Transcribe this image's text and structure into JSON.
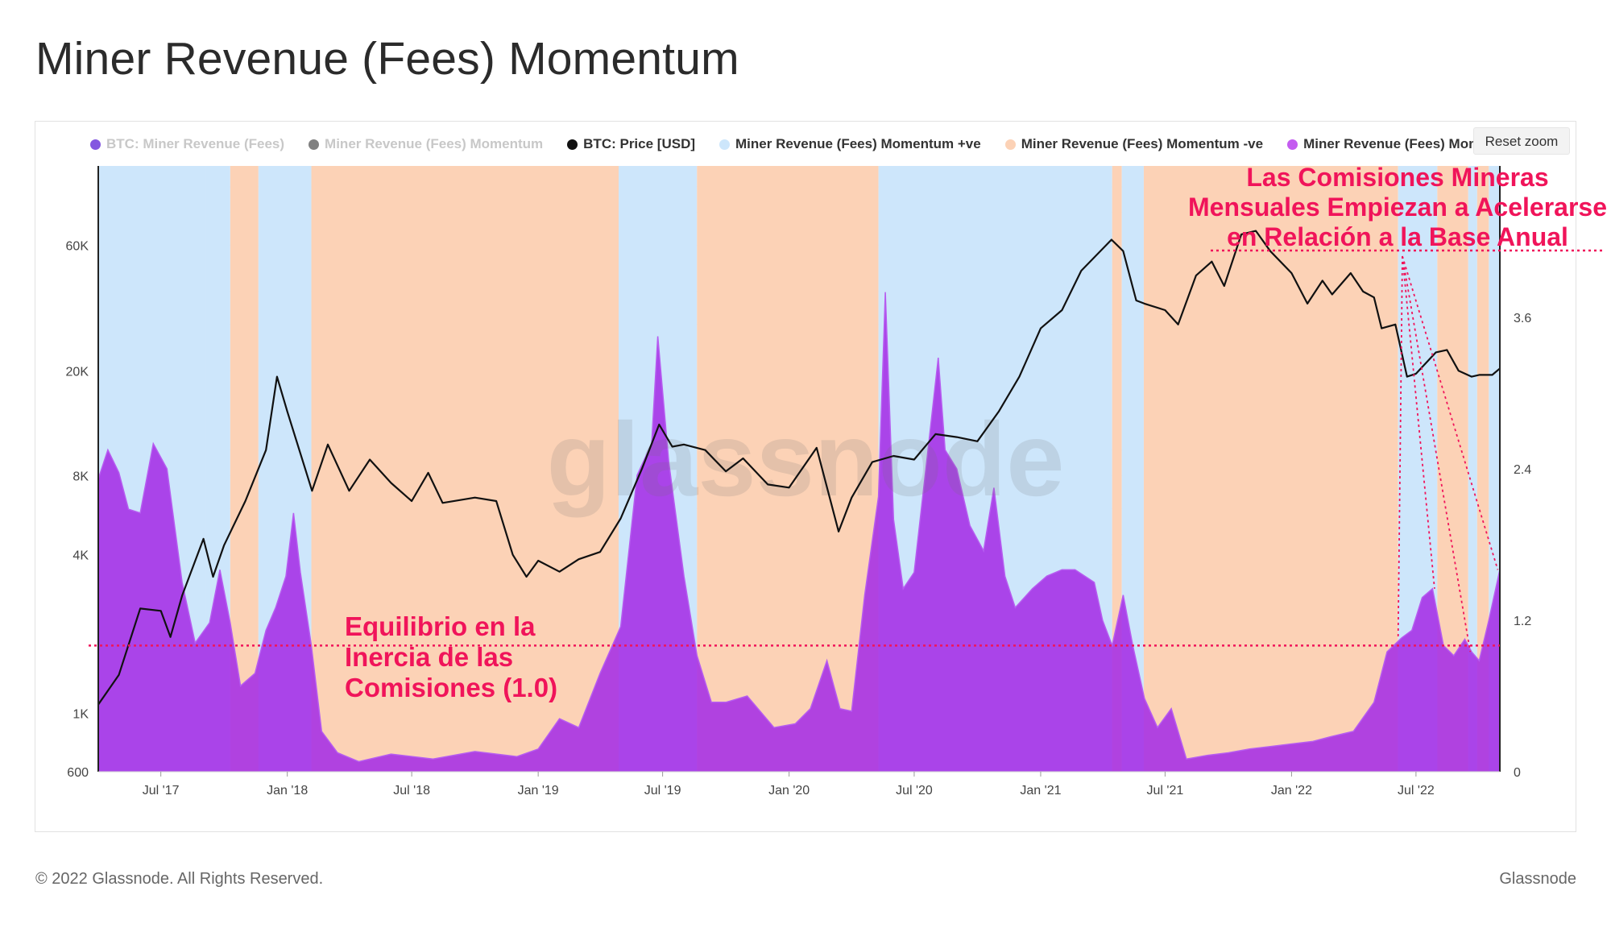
{
  "page": {
    "title": "Miner Revenue (Fees) Momentum",
    "reset_zoom_label": "Reset zoom",
    "copyright": "© 2022 Glassnode. All Rights Reserved.",
    "brand": "Glassnode",
    "watermark": "glassnode"
  },
  "legend": [
    {
      "label": "BTC: Miner Revenue (Fees)",
      "color": "#5b1fd6",
      "visible": false
    },
    {
      "label": "Miner Revenue (Fees) Momentum",
      "color": "#555555",
      "visible": false
    },
    {
      "label": "BTC: Price [USD]",
      "color": "#111111",
      "visible": true
    },
    {
      "label": "Miner Revenue (Fees) Momentum +ve",
      "color": "#cde6fb",
      "visible": true
    },
    {
      "label": "Miner Revenue (Fees) Momentum -ve",
      "color": "#fcd2b6",
      "visible": true
    },
    {
      "label": "Miner Revenue (Fees) Momentum",
      "color": "#c45cf0",
      "visible": true
    }
  ],
  "annotations": {
    "top_right": [
      "Las Comisiones Mineras",
      "Mensuales Empiezan a Acelerarse",
      "en Relación a la Base Anual"
    ],
    "equilibrium": [
      "Equilibrio en la",
      "Inercia de las",
      "Comisiones (1.0)"
    ]
  },
  "colors": {
    "price_line": "#111111",
    "positive_band": "#cde6fb",
    "negative_band": "#fcd2b6",
    "momentum_fill": "#a52ee6",
    "annotation": "#f0145a"
  },
  "chart_data": {
    "type": "area",
    "title": "Miner Revenue (Fees) Momentum",
    "x_axis": {
      "type": "datetime",
      "range": [
        "2017-04-01",
        "2022-10-31"
      ],
      "tick_labels": [
        "Jul '17",
        "Jan '18",
        "Jul '18",
        "Jan '19",
        "Jul '19",
        "Jan '20",
        "Jul '20",
        "Jan '21",
        "Jul '21",
        "Jan '22",
        "Jul '22"
      ],
      "tick_dates": [
        "2017-07-01",
        "2018-01-01",
        "2018-07-01",
        "2019-01-01",
        "2019-07-01",
        "2020-01-01",
        "2020-07-01",
        "2021-01-01",
        "2021-07-01",
        "2022-01-01",
        "2022-07-01"
      ]
    },
    "y_axis_left": {
      "label": "BTC: Price [USD]",
      "scale": "log",
      "range": [
        600,
        120000
      ],
      "tick_labels": [
        "600",
        "1K",
        "4K",
        "8K",
        "20K",
        "60K"
      ],
      "tick_values": [
        600,
        1000,
        4000,
        8000,
        20000,
        60000
      ]
    },
    "y_axis_right": {
      "label": "Miner Revenue (Fees) Momentum",
      "scale": "linear",
      "range": [
        0,
        4.8
      ],
      "tick_labels": [
        "0",
        "1.2",
        "2.4",
        "3.6"
      ],
      "tick_values": [
        0,
        1.2,
        2.4,
        3.6
      ]
    },
    "equilibrium_level": 1.0,
    "series": [
      {
        "name": "BTC: Price [USD]",
        "axis": "left",
        "type": "line",
        "points": [
          [
            "2017-04-01",
            1080
          ],
          [
            "2017-05-01",
            1400
          ],
          [
            "2017-06-01",
            2500
          ],
          [
            "2017-07-01",
            2450
          ],
          [
            "2017-07-15",
            1950
          ],
          [
            "2017-08-01",
            2800
          ],
          [
            "2017-09-01",
            4600
          ],
          [
            "2017-09-15",
            3300
          ],
          [
            "2017-10-01",
            4350
          ],
          [
            "2017-11-01",
            6400
          ],
          [
            "2017-12-01",
            10000
          ],
          [
            "2017-12-17",
            19000
          ],
          [
            "2018-01-01",
            14000
          ],
          [
            "2018-02-06",
            7000
          ],
          [
            "2018-03-01",
            10500
          ],
          [
            "2018-04-01",
            7000
          ],
          [
            "2018-05-01",
            9200
          ],
          [
            "2018-06-01",
            7500
          ],
          [
            "2018-07-01",
            6400
          ],
          [
            "2018-07-25",
            8200
          ],
          [
            "2018-08-15",
            6300
          ],
          [
            "2018-10-01",
            6600
          ],
          [
            "2018-11-01",
            6400
          ],
          [
            "2018-11-25",
            4000
          ],
          [
            "2018-12-15",
            3300
          ],
          [
            "2019-01-01",
            3800
          ],
          [
            "2019-02-01",
            3450
          ],
          [
            "2019-03-01",
            3850
          ],
          [
            "2019-04-01",
            4100
          ],
          [
            "2019-05-01",
            5500
          ],
          [
            "2019-06-01",
            8500
          ],
          [
            "2019-06-26",
            12500
          ],
          [
            "2019-07-15",
            10300
          ],
          [
            "2019-08-01",
            10500
          ],
          [
            "2019-09-01",
            10000
          ],
          [
            "2019-10-01",
            8300
          ],
          [
            "2019-10-26",
            9300
          ],
          [
            "2019-12-01",
            7400
          ],
          [
            "2020-01-01",
            7200
          ],
          [
            "2020-02-10",
            10200
          ],
          [
            "2020-03-13",
            4900
          ],
          [
            "2020-04-01",
            6600
          ],
          [
            "2020-05-01",
            9000
          ],
          [
            "2020-06-01",
            9500
          ],
          [
            "2020-07-01",
            9200
          ],
          [
            "2020-08-01",
            11500
          ],
          [
            "2020-09-01",
            11200
          ],
          [
            "2020-10-01",
            10800
          ],
          [
            "2020-11-01",
            14000
          ],
          [
            "2020-12-01",
            19000
          ],
          [
            "2021-01-01",
            29000
          ],
          [
            "2021-02-01",
            34000
          ],
          [
            "2021-03-01",
            48000
          ],
          [
            "2021-04-14",
            63000
          ],
          [
            "2021-05-01",
            57000
          ],
          [
            "2021-05-20",
            37000
          ],
          [
            "2021-06-01",
            36000
          ],
          [
            "2021-07-01",
            34000
          ],
          [
            "2021-07-20",
            30000
          ],
          [
            "2021-08-15",
            46000
          ],
          [
            "2021-09-07",
            52000
          ],
          [
            "2021-09-25",
            42000
          ],
          [
            "2021-10-20",
            66000
          ],
          [
            "2021-11-10",
            68000
          ],
          [
            "2021-12-01",
            57000
          ],
          [
            "2022-01-01",
            47000
          ],
          [
            "2022-01-24",
            36000
          ],
          [
            "2022-02-15",
            44000
          ],
          [
            "2022-03-01",
            39000
          ],
          [
            "2022-03-28",
            47000
          ],
          [
            "2022-04-15",
            40000
          ],
          [
            "2022-05-01",
            38000
          ],
          [
            "2022-05-12",
            29000
          ],
          [
            "2022-06-01",
            30000
          ],
          [
            "2022-06-18",
            19000
          ],
          [
            "2022-07-01",
            19500
          ],
          [
            "2022-07-30",
            23500
          ],
          [
            "2022-08-15",
            24000
          ],
          [
            "2022-09-01",
            20000
          ],
          [
            "2022-09-20",
            19000
          ],
          [
            "2022-10-01",
            19300
          ],
          [
            "2022-10-20",
            19300
          ],
          [
            "2022-10-31",
            20400
          ]
        ]
      },
      {
        "name": "Miner Revenue (Fees) Momentum",
        "axis": "right",
        "type": "area",
        "points": [
          [
            "2017-04-01",
            2.32
          ],
          [
            "2017-04-15",
            2.55
          ],
          [
            "2017-05-01",
            2.37
          ],
          [
            "2017-05-15",
            2.08
          ],
          [
            "2017-06-01",
            2.05
          ],
          [
            "2017-06-20",
            2.6
          ],
          [
            "2017-07-10",
            2.4
          ],
          [
            "2017-08-01",
            1.5
          ],
          [
            "2017-08-20",
            1.02
          ],
          [
            "2017-09-10",
            1.18
          ],
          [
            "2017-09-25",
            1.6
          ],
          [
            "2017-10-10",
            1.18
          ],
          [
            "2017-10-25",
            0.68
          ],
          [
            "2017-11-15",
            0.78
          ],
          [
            "2017-12-01",
            1.12
          ],
          [
            "2017-12-15",
            1.3
          ],
          [
            "2017-12-30",
            1.55
          ],
          [
            "2018-01-10",
            2.05
          ],
          [
            "2018-01-20",
            1.58
          ],
          [
            "2018-02-05",
            1.0
          ],
          [
            "2018-02-20",
            0.32
          ],
          [
            "2018-03-15",
            0.15
          ],
          [
            "2018-04-15",
            0.08
          ],
          [
            "2018-06-01",
            0.14
          ],
          [
            "2018-08-01",
            0.1
          ],
          [
            "2018-10-01",
            0.16
          ],
          [
            "2018-12-01",
            0.12
          ],
          [
            "2019-01-01",
            0.18
          ],
          [
            "2019-02-01",
            0.42
          ],
          [
            "2019-03-01",
            0.35
          ],
          [
            "2019-04-01",
            0.78
          ],
          [
            "2019-05-01",
            1.15
          ],
          [
            "2019-05-25",
            2.35
          ],
          [
            "2019-06-15",
            2.6
          ],
          [
            "2019-06-24",
            3.45
          ],
          [
            "2019-07-10",
            2.45
          ],
          [
            "2019-08-01",
            1.55
          ],
          [
            "2019-08-20",
            0.92
          ],
          [
            "2019-09-10",
            0.55
          ],
          [
            "2019-10-01",
            0.55
          ],
          [
            "2019-11-01",
            0.6
          ],
          [
            "2019-12-10",
            0.35
          ],
          [
            "2020-01-10",
            0.38
          ],
          [
            "2020-02-01",
            0.5
          ],
          [
            "2020-02-25",
            0.88
          ],
          [
            "2020-03-15",
            0.5
          ],
          [
            "2020-04-01",
            0.48
          ],
          [
            "2020-04-20",
            1.4
          ],
          [
            "2020-05-10",
            2.18
          ],
          [
            "2020-05-20",
            3.8
          ],
          [
            "2020-06-01",
            2.0
          ],
          [
            "2020-06-15",
            1.45
          ],
          [
            "2020-07-01",
            1.58
          ],
          [
            "2020-07-20",
            2.5
          ],
          [
            "2020-08-05",
            3.28
          ],
          [
            "2020-08-15",
            2.55
          ],
          [
            "2020-09-01",
            2.4
          ],
          [
            "2020-09-20",
            1.95
          ],
          [
            "2020-10-10",
            1.75
          ],
          [
            "2020-10-25",
            2.25
          ],
          [
            "2020-11-10",
            1.55
          ],
          [
            "2020-11-25",
            1.3
          ],
          [
            "2020-12-20",
            1.45
          ],
          [
            "2021-01-10",
            1.55
          ],
          [
            "2021-02-01",
            1.6
          ],
          [
            "2021-02-20",
            1.6
          ],
          [
            "2021-03-20",
            1.5
          ],
          [
            "2021-04-01",
            1.2
          ],
          [
            "2021-04-15",
            1.0
          ],
          [
            "2021-05-01",
            1.4
          ],
          [
            "2021-05-15",
            1.0
          ],
          [
            "2021-06-01",
            0.58
          ],
          [
            "2021-06-20",
            0.35
          ],
          [
            "2021-07-10",
            0.5
          ],
          [
            "2021-08-01",
            0.1
          ],
          [
            "2021-09-01",
            0.13
          ],
          [
            "2021-10-01",
            0.15
          ],
          [
            "2021-11-01",
            0.18
          ],
          [
            "2021-12-01",
            0.2
          ],
          [
            "2022-01-01",
            0.22
          ],
          [
            "2022-02-01",
            0.24
          ],
          [
            "2022-03-01",
            0.28
          ],
          [
            "2022-04-01",
            0.32
          ],
          [
            "2022-05-01",
            0.55
          ],
          [
            "2022-05-20",
            0.95
          ],
          [
            "2022-06-10",
            1.06
          ],
          [
            "2022-06-25",
            1.12
          ],
          [
            "2022-07-10",
            1.38
          ],
          [
            "2022-07-25",
            1.45
          ],
          [
            "2022-08-10",
            1.0
          ],
          [
            "2022-08-25",
            0.92
          ],
          [
            "2022-09-10",
            1.05
          ],
          [
            "2022-09-20",
            0.95
          ],
          [
            "2022-10-01",
            0.88
          ],
          [
            "2022-10-15",
            1.2
          ],
          [
            "2022-10-31",
            1.6
          ]
        ]
      }
    ],
    "regime_bands": [
      {
        "start": "2017-04-01",
        "end": "2017-09-05",
        "sign": "+ve"
      },
      {
        "start": "2017-09-05",
        "end": "2017-10-10",
        "sign": "+ve"
      },
      {
        "start": "2017-10-10",
        "end": "2017-11-20",
        "sign": "-ve"
      },
      {
        "start": "2017-11-20",
        "end": "2018-02-05",
        "sign": "+ve"
      },
      {
        "start": "2018-02-05",
        "end": "2019-04-28",
        "sign": "-ve"
      },
      {
        "start": "2019-04-28",
        "end": "2019-08-20",
        "sign": "+ve"
      },
      {
        "start": "2019-08-20",
        "end": "2020-05-10",
        "sign": "-ve"
      },
      {
        "start": "2020-05-10",
        "end": "2021-04-15",
        "sign": "+ve"
      },
      {
        "start": "2021-04-15",
        "end": "2021-04-29",
        "sign": "-ve"
      },
      {
        "start": "2021-04-29",
        "end": "2021-05-31",
        "sign": "+ve"
      },
      {
        "start": "2021-05-31",
        "end": "2022-06-05",
        "sign": "-ve"
      },
      {
        "start": "2022-06-05",
        "end": "2022-08-01",
        "sign": "+ve"
      },
      {
        "start": "2022-08-01",
        "end": "2022-09-15",
        "sign": "-ve"
      },
      {
        "start": "2022-09-15",
        "end": "2022-09-28",
        "sign": "+ve"
      },
      {
        "start": "2022-09-28",
        "end": "2022-10-15",
        "sign": "-ve"
      },
      {
        "start": "2022-10-15",
        "end": "2022-10-31",
        "sign": "+ve"
      }
    ]
  }
}
